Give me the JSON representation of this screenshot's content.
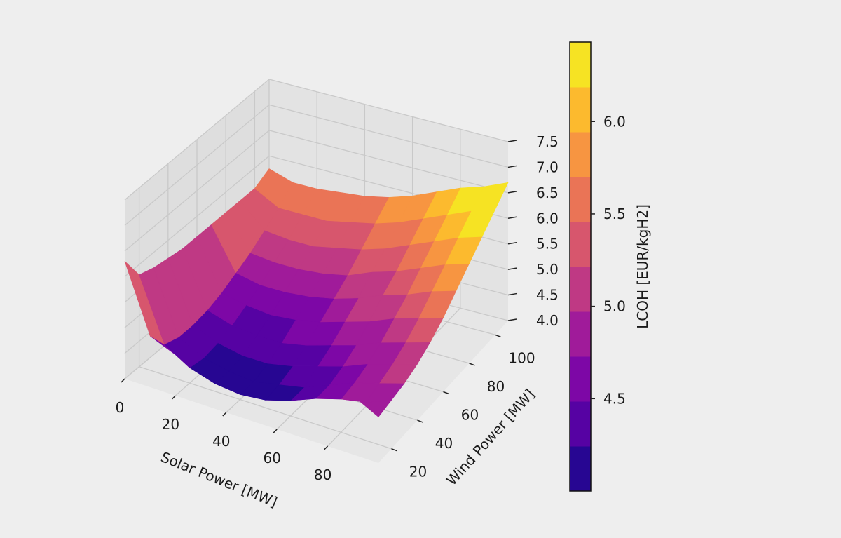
{
  "chart_data": {
    "type": "surface",
    "colormap": "plasma",
    "x_axis": {
      "label": "Solar Power [MW]",
      "ticks": [
        0,
        20,
        40,
        60,
        80
      ],
      "range": [
        0,
        100
      ]
    },
    "y_axis": {
      "label": "Wind Power [MW]",
      "ticks": [
        20,
        40,
        60,
        80,
        100
      ],
      "range": [
        10,
        110
      ]
    },
    "z_axis": {
      "label": "",
      "ticks": [
        "4.0",
        "4.5",
        "5.0",
        "5.5",
        "6.0",
        "6.5",
        "7.0",
        "7.5"
      ],
      "range": [
        4.0,
        7.5
      ]
    },
    "colorbar": {
      "label": "LCOH [EUR/kgH2]",
      "ticks": [
        "4.5",
        "5.0",
        "5.5",
        "6.0"
      ],
      "range": [
        4.0,
        6.43
      ],
      "levels": 10
    },
    "x": [
      0,
      10,
      20,
      30,
      40,
      50,
      60,
      70,
      80,
      90,
      100
    ],
    "y": [
      10,
      20,
      30,
      40,
      50,
      60,
      70,
      80,
      90,
      100,
      110
    ],
    "z_rows_by_y": [
      [
        6.3,
        5.0,
        4.8,
        4.7,
        4.65,
        4.7,
        4.8,
        4.9,
        5.05,
        5.15,
        4.9
      ],
      [
        5.8,
        4.6,
        4.3,
        4.15,
        4.1,
        4.15,
        4.3,
        4.5,
        4.65,
        4.75,
        4.95
      ],
      [
        5.7,
        4.5,
        4.25,
        4.15,
        4.1,
        4.2,
        4.3,
        4.5,
        4.7,
        4.85,
        5.0
      ],
      [
        5.65,
        4.5,
        4.3,
        4.2,
        4.2,
        4.3,
        4.45,
        4.6,
        4.8,
        4.95,
        5.1
      ],
      [
        5.6,
        4.55,
        4.4,
        4.35,
        4.35,
        4.45,
        4.6,
        4.75,
        4.95,
        5.1,
        5.25
      ],
      [
        5.6,
        4.65,
        4.55,
        4.5,
        4.55,
        4.65,
        4.8,
        4.95,
        5.15,
        5.3,
        5.45
      ],
      [
        5.6,
        4.8,
        4.7,
        4.7,
        4.75,
        4.85,
        5.0,
        5.2,
        5.35,
        5.55,
        5.7
      ],
      [
        5.6,
        4.95,
        4.9,
        4.9,
        4.95,
        5.05,
        5.25,
        5.4,
        5.6,
        5.8,
        5.95
      ],
      [
        5.6,
        5.15,
        5.1,
        5.1,
        5.2,
        5.3,
        5.45,
        5.65,
        5.85,
        6.05,
        6.2
      ],
      [
        5.6,
        5.35,
        5.35,
        5.35,
        5.45,
        5.55,
        5.7,
        5.9,
        6.1,
        6.3,
        6.45
      ],
      [
        5.75,
        5.6,
        5.6,
        5.65,
        5.7,
        5.8,
        5.95,
        6.15,
        6.35,
        6.5,
        6.7
      ]
    ]
  }
}
